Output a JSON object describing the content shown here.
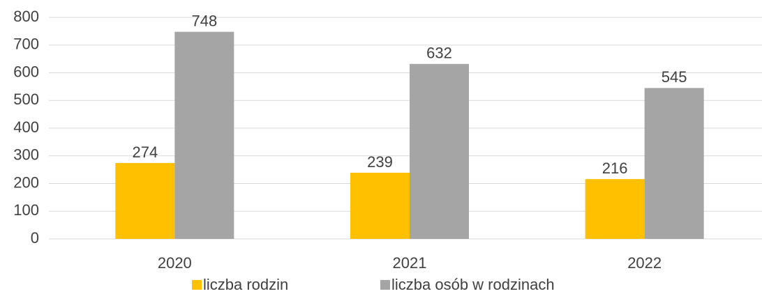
{
  "chart_data": {
    "type": "bar",
    "categories": [
      "2020",
      "2021",
      "2022"
    ],
    "series": [
      {
        "name": "liczba rodzin",
        "color": "#ffc000",
        "values": [
          274,
          239,
          216
        ]
      },
      {
        "name": "liczba osób w rodzinach",
        "color": "#a5a5a5",
        "values": [
          748,
          632,
          545
        ]
      }
    ],
    "ylim": [
      0,
      800
    ],
    "yticks": [
      0,
      100,
      200,
      300,
      400,
      500,
      600,
      700,
      800
    ],
    "grid": true,
    "legend": "bottom"
  }
}
